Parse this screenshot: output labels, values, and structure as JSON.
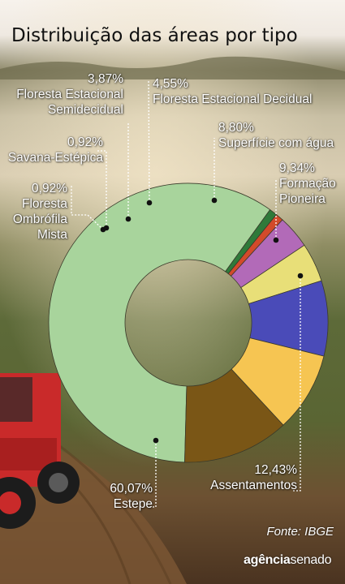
{
  "chart_data": {
    "type": "pie",
    "title": "Distribuição das áreas por tipo",
    "categories": [
      "Estepe",
      "Floresta Ombrófila Mista",
      "Savana-Estépica",
      "Floresta Estacional Semidecidual",
      "Floresta Estacional Decidual",
      "Superfície com água",
      "Formação Pioneira",
      "Assentamentos"
    ],
    "values": [
      60.07,
      0.92,
      0.92,
      3.87,
      4.55,
      8.8,
      9.34,
      12.43
    ],
    "value_labels": [
      "60,07%",
      "0,92%",
      "0,92%",
      "3,87%",
      "4,55%",
      "8,80%",
      "9,34%",
      "12,43%"
    ],
    "colors": [
      "#a8d49c",
      "#2f7a3a",
      "#d24a2a",
      "#b26ab8",
      "#e8df78",
      "#4a4bb8",
      "#f6c552",
      "#7a5616"
    ]
  },
  "labels": {
    "estepe": {
      "pct": "60,07%",
      "name": "Estepe"
    },
    "ombrofila": {
      "pct": "0,92%",
      "l1": "Floresta",
      "l2": "Ombrófila",
      "l3": "Mista"
    },
    "savana": {
      "pct": "0,92%",
      "name": "Savana-Estépica"
    },
    "semidecidual": {
      "pct": "3,87%",
      "l1": "Floresta Estacional",
      "l2": "Semidecidual"
    },
    "decidual": {
      "pct": "4,55%",
      "name": "Floresta Estacional Decidual"
    },
    "agua": {
      "pct": "8,80%",
      "name": "Superfície com água"
    },
    "pioneira": {
      "pct": "9,34%",
      "l1": "Formação",
      "l2": "Pioneira"
    },
    "assentamentos": {
      "pct": "12,43%",
      "name": "Assentamentos"
    }
  },
  "source": "Fonte: IBGE",
  "brand": {
    "part1": "agência",
    "part2": "senado"
  }
}
